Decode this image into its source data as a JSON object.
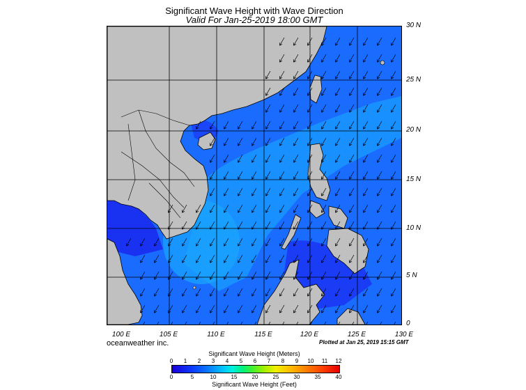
{
  "header": {
    "title": "Significant Wave Height with Wave Direction",
    "subtitle": "Valid For Jan-25-2019 18:00 GMT"
  },
  "latitude_labels": [
    "30 N",
    "25 N",
    "20 N",
    "15 N",
    "10 N",
    "5 N",
    "0"
  ],
  "longitude_labels": [
    "100 E",
    "105 E",
    "110 E",
    "115 E",
    "120 E",
    "125 E",
    "130 E"
  ],
  "footer": {
    "credit": "oceanweather inc.",
    "plotted": "Plotted at Jan 25, 2019 15:15 GMT"
  },
  "colorbar": {
    "meters_title": "Significant Wave Height (Meters)",
    "feet_title": "Significant Wave Height (Feet)",
    "meters_ticks": [
      "0",
      "1",
      "2",
      "3",
      "4",
      "5",
      "6",
      "7",
      "8",
      "9",
      "10",
      "11",
      "12"
    ],
    "feet_ticks": [
      "0",
      "5",
      "10",
      "15",
      "20",
      "25",
      "30",
      "35",
      "40"
    ]
  },
  "colors": {
    "land": "#c0c0c0",
    "sea_low": "#1a2cf0",
    "sea_mid": "#1a6cff",
    "sea_high": "#1aa6ff",
    "arrow": "#000000",
    "grid": "#000000"
  },
  "map": {
    "region": "South China Sea",
    "lon_range": [
      99,
      130
    ],
    "lat_range": [
      0,
      30
    ],
    "wave_direction": "from northeast"
  }
}
